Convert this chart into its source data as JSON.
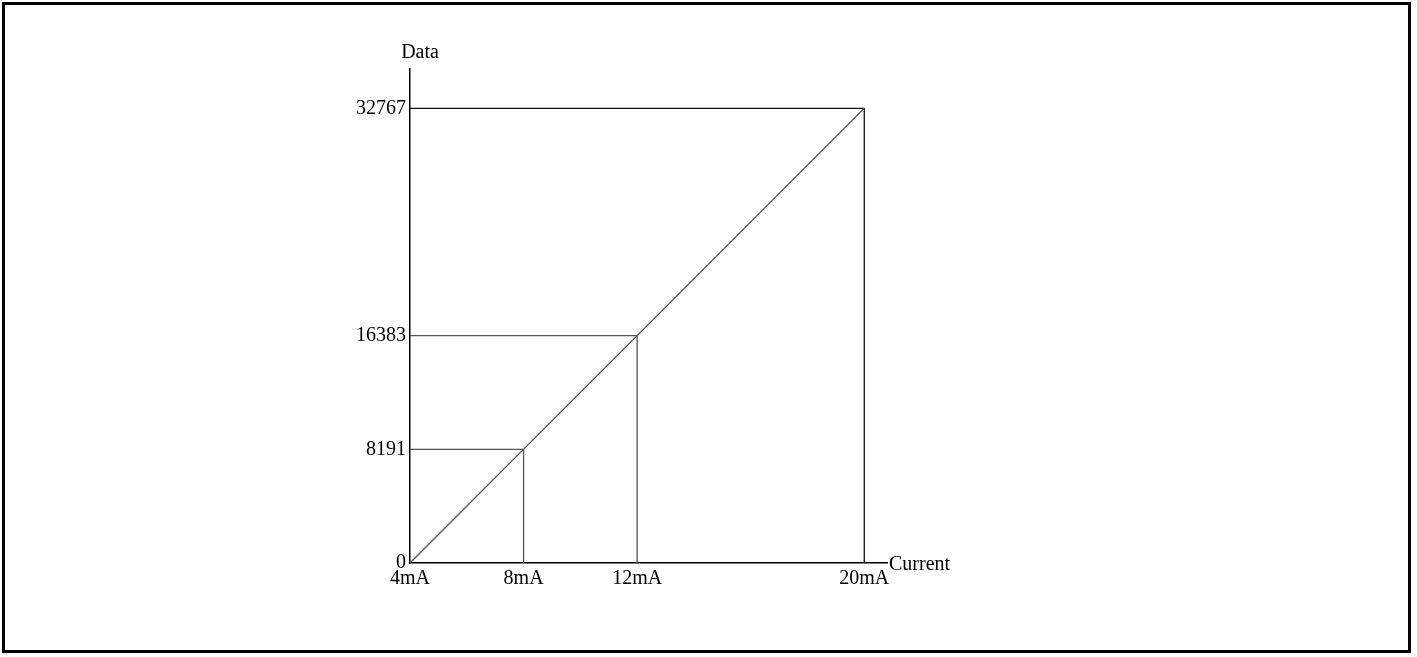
{
  "chart_data": {
    "type": "line",
    "xlabel": "Current",
    "ylabel": "Data",
    "xlim": [
      4,
      20.8
    ],
    "ylim": [
      0,
      35600
    ],
    "xticks": [
      {
        "value": 4,
        "label": "4mA"
      },
      {
        "value": 8,
        "label": "8mA"
      },
      {
        "value": 12,
        "label": "12mA"
      },
      {
        "value": 20,
        "label": "20mA"
      }
    ],
    "yticks": [
      0,
      8191,
      16383,
      32767
    ],
    "grid": false,
    "legend": false,
    "marker": "none",
    "line_style": "solid",
    "series": [
      {
        "color": "#555555",
        "x": [
          4,
          20
        ],
        "values": [
          0,
          32767
        ]
      },
      {
        "color": "#555555",
        "x": [
          4,
          8,
          8
        ],
        "values": [
          8191,
          8191,
          0
        ]
      },
      {
        "color": "#555555",
        "x": [
          4,
          12,
          12
        ],
        "values": [
          16383,
          16383,
          0
        ]
      },
      {
        "color": "#111111",
        "x": [
          4,
          20,
          20
        ],
        "values": [
          32767,
          32767,
          0
        ]
      }
    ]
  }
}
